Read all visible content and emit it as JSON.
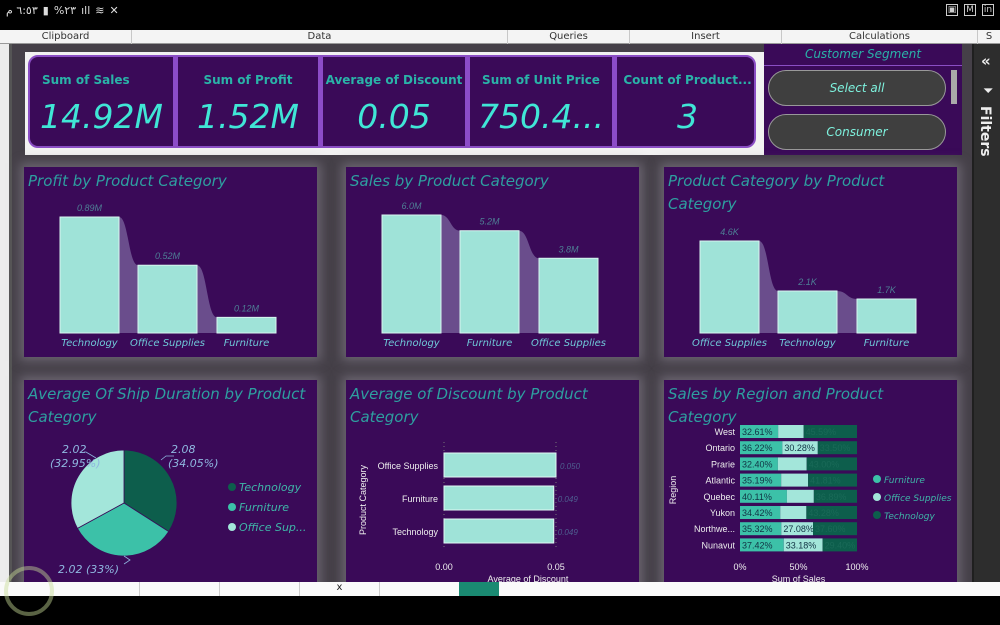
{
  "status_bar": {
    "time": "٦:٥٣ م",
    "battery": "%٢٣",
    "right_icons": [
      "gallery-icon",
      "gmail-icon",
      "linkedin-icon"
    ]
  },
  "ribbon": {
    "groups": [
      "Clipboard",
      "Data",
      "Queries",
      "Insert",
      "Calculations",
      "S"
    ]
  },
  "kpis": [
    {
      "label": "Sum of Sales",
      "value": "14.92M"
    },
    {
      "label": "Sum of Profit",
      "value": "1.52M"
    },
    {
      "label": "Average of Discount",
      "value": "0.05"
    },
    {
      "label": "Sum of Unit Price",
      "value": "750.4..."
    },
    {
      "label": "Count of Product...",
      "value": "3"
    }
  ],
  "slicer": {
    "title": "Customer Segment",
    "options": [
      "Select all",
      "Consumer"
    ]
  },
  "filters_pane": {
    "label": "Filters",
    "collapse_icon": "double-chevron-left-icon",
    "filter_icon": "funnel-icon"
  },
  "colors": {
    "panel_bg": "#3a0a58",
    "bar_fill": "#9fe3d8",
    "ribbon_fill": "#6a4d8c",
    "title_color": "#2e9fa0",
    "technology": "#0d5e4c",
    "furniture": "#3cc1a8",
    "office_supplies": "#a3e6da"
  },
  "chart_data": [
    {
      "id": "profit",
      "type": "bar",
      "title": "Profit by Product Category",
      "categories": [
        "Technology",
        "Office Supplies",
        "Furniture"
      ],
      "values": [
        0.89,
        0.52,
        0.12
      ],
      "labels": [
        "0.89M",
        "0.52M",
        "0.12M"
      ],
      "unit": "M"
    },
    {
      "id": "sales",
      "type": "bar",
      "title": "Sales by Product Category",
      "categories": [
        "Technology",
        "Furniture",
        "Office Supplies"
      ],
      "values": [
        6.0,
        5.2,
        3.8
      ],
      "labels": [
        "6.0M",
        "5.2M",
        "3.8M"
      ],
      "unit": "M"
    },
    {
      "id": "count",
      "type": "bar",
      "title": "Product Category by Product Category",
      "categories": [
        "Office Supplies",
        "Technology",
        "Furniture"
      ],
      "values": [
        4.6,
        2.1,
        1.7
      ],
      "labels": [
        "4.6K",
        "2.1K",
        "1.7K"
      ],
      "unit": "K"
    },
    {
      "id": "ship",
      "type": "pie",
      "title": "Average Of Ship Duration by Product Category",
      "slices": [
        {
          "name": "Technology",
          "value": 2.08,
          "percent": 34.05,
          "label": "2.08\n(34.05%)"
        },
        {
          "name": "Furniture",
          "value": 2.02,
          "percent": 33.0,
          "label": "2.02 (33%)"
        },
        {
          "name": "Office Supplies",
          "value": 2.02,
          "percent": 32.95,
          "label": "2.02\n(32.95%)"
        }
      ],
      "legend": [
        "Technology",
        "Furniture",
        "Office Sup..."
      ],
      "legend_position": "right"
    },
    {
      "id": "discount",
      "type": "bar",
      "orientation": "horizontal",
      "title": "Average of Discount by Product Category",
      "categories": [
        "Office Supplies",
        "Furniture",
        "Technology"
      ],
      "values": [
        0.05,
        0.049,
        0.049
      ],
      "labels": [
        "0.050",
        "0.049",
        "0.049"
      ],
      "xlabel": "Average of Discount",
      "ylabel": "Product Category",
      "xticks": [
        "0.00",
        "0.05"
      ],
      "xlim": [
        0,
        0.05
      ]
    },
    {
      "id": "region",
      "type": "bar",
      "orientation": "horizontal",
      "stacked": "100%",
      "title": "Sales by Region and Product Category",
      "categories": [
        "West",
        "Ontario",
        "Prarie",
        "Atlantic",
        "Quebec",
        "Yukon",
        "Northwe...",
        "Nunavut"
      ],
      "series": [
        {
          "name": "Furniture",
          "values": [
            32.61,
            36.22,
            32.4,
            35.19,
            40.11,
            34.42,
            35.32,
            37.42
          ],
          "labels": [
            "32.61%",
            "36.22%",
            "32.40%",
            "35.19%",
            "40.11%",
            "34.42%",
            "35.32%",
            "37.42%"
          ]
        },
        {
          "name": "Office Supplies",
          "values": [
            21.8,
            30.28,
            24.6,
            23.0,
            23.0,
            22.3,
            27.08,
            33.18
          ],
          "labels": [
            "",
            "30.28%",
            "",
            "",
            "",
            "",
            "27.08%",
            "33.18%"
          ]
        },
        {
          "name": "Technology",
          "values": [
            45.59,
            33.5,
            43.0,
            41.81,
            36.89,
            43.28,
            37.6,
            29.4
          ],
          "labels": [
            "45.59%",
            "33.50%",
            "43.00%",
            "41.81%",
            "36.89%",
            "43.28%",
            "37.60%",
            "29.40%"
          ]
        }
      ],
      "xlabel": "Sum of Sales",
      "ylabel": "Region",
      "xticks": [
        "0%",
        "50%",
        "100%"
      ],
      "legend": [
        "Furniture",
        "Office Supplies",
        "Technology"
      ],
      "legend_position": "right"
    }
  ]
}
